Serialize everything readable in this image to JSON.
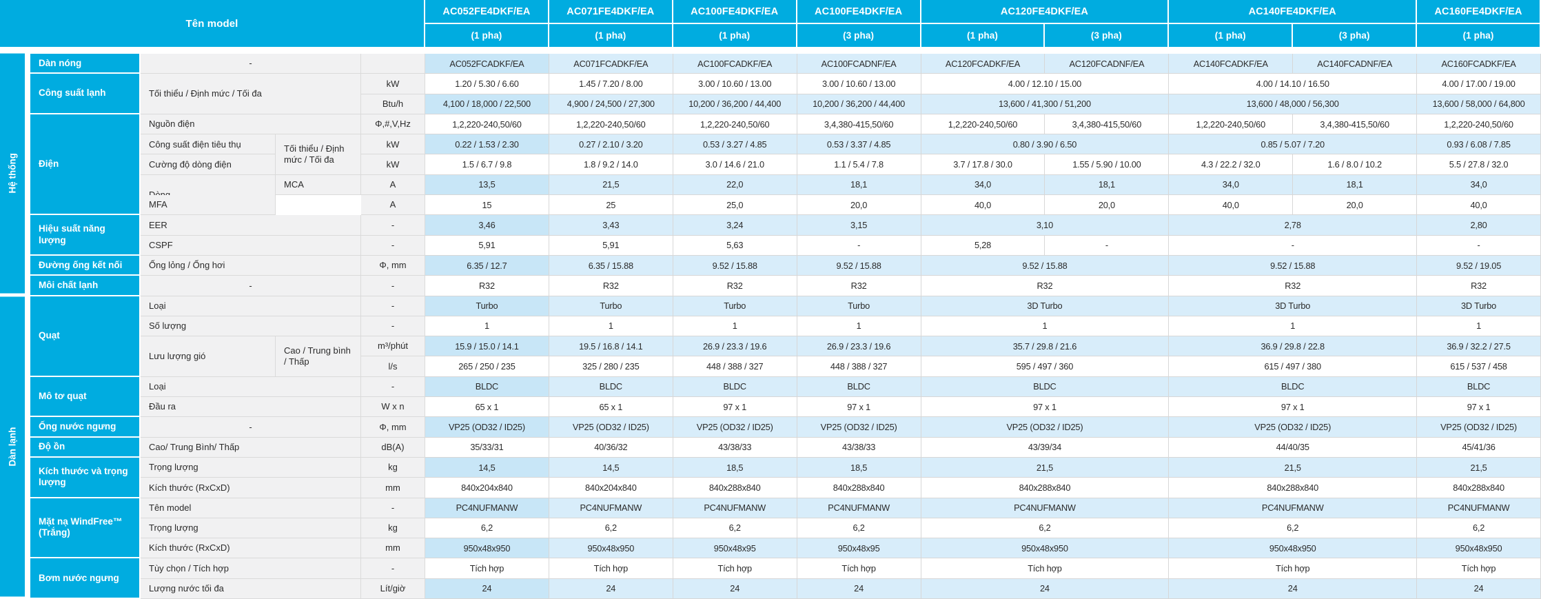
{
  "colors": {
    "accent": "#00ACE0",
    "row_shaded": "#D8EDFA",
    "row_shaded_first_col": "#C8E6F7",
    "label_gray": "#F1F1F2"
  },
  "header": {
    "ten_model_label": "Tên model",
    "models": [
      {
        "name": "AC052FE4DKF/EA",
        "phases": [
          "(1 pha)"
        ]
      },
      {
        "name": "AC071FE4DKF/EA",
        "phases": [
          "(1 pha)"
        ]
      },
      {
        "name": "AC100FE4DKF/EA",
        "phases": [
          "(1 pha)"
        ]
      },
      {
        "name": "AC100FE4DKF/EA",
        "phases": [
          "(3 pha)"
        ]
      },
      {
        "name": "AC120FE4DKF/EA",
        "phases": [
          "(1 pha)",
          "(3 pha)"
        ]
      },
      {
        "name": "AC140FE4DKF/EA",
        "phases": [
          "(1 pha)",
          "(3 pha)"
        ]
      },
      {
        "name": "AC160FE4DKF/EA",
        "phases": [
          "(1 pha)"
        ]
      }
    ]
  },
  "sections": [
    {
      "label": "Hệ thống",
      "rows": 12
    },
    {
      "label": "Dàn lạnh",
      "rows": 15
    }
  ],
  "rows": [
    {
      "group": {
        "label": "Dàn nóng",
        "rowspan": 1
      },
      "subs": [
        {
          "label": "-",
          "colspan": 2,
          "align": "center"
        }
      ],
      "unit": "",
      "cells": [
        "AC052FCADKF/EA",
        "AC071FCADKF/EA",
        "AC100FCADKF/EA",
        "AC100FCADNF/EA",
        "AC120FCADKF/EA",
        "AC120FCADNF/EA",
        "AC140FCADKF/EA",
        "AC140FCADNF/EA",
        "AC160FCADKF/EA"
      ]
    },
    {
      "group": {
        "label": "Công suất lạnh",
        "rowspan": 2
      },
      "subs": [
        {
          "label": "Tối thiểu / Định mức / Tối đa",
          "colspan": 2,
          "rowspan": 2,
          "align": "left"
        }
      ],
      "unit": "kW",
      "cells": [
        "1.20 / 5.30 / 6.60",
        "1.45 / 7.20 / 8.00",
        "3.00 / 10.60 / 13.00",
        "3.00 / 10.60 / 13.00",
        {
          "v": "4.00 / 12.10 / 15.00",
          "s": 2
        },
        {
          "v": "4.00 / 14.10 / 16.50",
          "s": 2
        },
        "4.00 / 17.00 / 19.00"
      ]
    },
    {
      "subs": [],
      "unit": "Btu/h",
      "cells": [
        "4,100 / 18,000 / 22,500",
        "4,900 / 24,500 / 27,300",
        "10,200 / 36,200 / 44,400",
        "10,200 / 36,200 / 44,400",
        {
          "v": "13,600 / 41,300 / 51,200",
          "s": 2
        },
        {
          "v": "13,600 / 48,000 / 56,300",
          "s": 2
        },
        "13,600 / 58,000 / 64,800"
      ]
    },
    {
      "group": {
        "label": "Điện",
        "rowspan": 5
      },
      "subs": [
        {
          "label": "Nguồn điện",
          "colspan": 2,
          "align": "left"
        }
      ],
      "unit": "Φ,#,V,Hz",
      "cells": [
        "1,2,220-240,50/60",
        "1,2,220-240,50/60",
        "1,2,220-240,50/60",
        "3,4,380-415,50/60",
        "1,2,220-240,50/60",
        "3,4,380-415,50/60",
        "1,2,220-240,50/60",
        "3,4,380-415,50/60",
        "1,2,220-240,50/60"
      ]
    },
    {
      "subs": [
        {
          "label": "Công suất điện tiêu thụ",
          "colspan": 1,
          "align": "left"
        },
        {
          "label": "Tối thiểu / Định mức / Tối đa",
          "colspan": 1,
          "rowspan": 2,
          "align": "left"
        }
      ],
      "unit": "kW",
      "cells": [
        "0.22 / 1.53 / 2.30",
        "0.27 / 2.10 / 3.20",
        "0.53 / 3.27 / 4.85",
        "0.53 / 3.37 / 4.85",
        {
          "v": "0.80 / 3.90 / 6.50",
          "s": 2
        },
        {
          "v": "0.85 / 5.07 / 7.20",
          "s": 2
        },
        "0.93 / 6.08 / 7.85"
      ]
    },
    {
      "subs": [
        {
          "label": "Cường độ dòng điện",
          "colspan": 1,
          "align": "left"
        }
      ],
      "unit": "kW",
      "cells": [
        "1.5 / 6.7 / 9.8",
        "1.8 / 9.2 / 14.0",
        "3.0 / 14.6 / 21.0",
        "1.1 / 5.4 / 7.8",
        "3.7 / 17.8 / 30.0",
        "1.55 / 5.90 / 10.00",
        "4.3 / 22.2 / 32.0",
        "1.6 / 8.0 / 10.2",
        "5.5 / 27.8 / 32.0"
      ]
    },
    {
      "subs": [
        {
          "label": "Dòng",
          "colspan": 1,
          "rowspan": 2,
          "align": "left"
        },
        {
          "label": "MCA",
          "colspan": 1,
          "align": "left"
        }
      ],
      "unit": "A",
      "cells": [
        "13,5",
        "21,5",
        "22,0",
        "18,1",
        "34,0",
        "18,1",
        "34,0",
        "18,1",
        "34,0"
      ]
    },
    {
      "subs": [
        {
          "label": "MFA",
          "colspan": 1,
          "align": "left"
        }
      ],
      "unit": "A",
      "cells": [
        "15",
        "25",
        "25,0",
        "20,0",
        "40,0",
        "20,0",
        "40,0",
        "20,0",
        "40,0"
      ]
    },
    {
      "group": {
        "label": "Hiệu suất năng lượng",
        "rowspan": 2
      },
      "subs": [
        {
          "label": "EER",
          "colspan": 2,
          "align": "left"
        }
      ],
      "unit": "-",
      "cells": [
        "3,46",
        "3,43",
        "3,24",
        "3,15",
        {
          "v": "3,10",
          "s": 2
        },
        {
          "v": "2,78",
          "s": 2
        },
        "2,80"
      ]
    },
    {
      "subs": [
        {
          "label": "CSPF",
          "colspan": 2,
          "align": "left"
        }
      ],
      "unit": "-",
      "cells": [
        "5,91",
        "5,91",
        "5,63",
        "-",
        "5,28",
        "-",
        {
          "v": "-",
          "s": 2
        },
        "-"
      ]
    },
    {
      "group": {
        "label": "Đường ống kết nối",
        "rowspan": 1
      },
      "subs": [
        {
          "label": "Ống lỏng / Ống hơi",
          "colspan": 2,
          "align": "left"
        }
      ],
      "unit": "Φ, mm",
      "cells": [
        "6.35 / 12.7",
        "6.35 / 15.88",
        "9.52 / 15.88",
        "9.52 / 15.88",
        {
          "v": "9.52 / 15.88",
          "s": 2
        },
        {
          "v": "9.52 / 15.88",
          "s": 2
        },
        "9.52 / 19.05"
      ]
    },
    {
      "group": {
        "label": "Môi chất lạnh",
        "rowspan": 1
      },
      "subs": [
        {
          "label": "-",
          "colspan": 2,
          "align": "center"
        }
      ],
      "unit": "-",
      "cells": [
        "R32",
        "R32",
        "R32",
        "R32",
        {
          "v": "R32",
          "s": 2
        },
        {
          "v": "R32",
          "s": 2
        },
        "R32"
      ]
    },
    {
      "group": {
        "label": "Quạt",
        "rowspan": 4
      },
      "subs": [
        {
          "label": "Loại",
          "colspan": 2,
          "align": "left"
        }
      ],
      "unit": "-",
      "cells": [
        "Turbo",
        "Turbo",
        "Turbo",
        "Turbo",
        {
          "v": "3D Turbo",
          "s": 2
        },
        {
          "v": "3D Turbo",
          "s": 2
        },
        "3D Turbo"
      ]
    },
    {
      "subs": [
        {
          "label": "Số lượng",
          "colspan": 2,
          "align": "left"
        }
      ],
      "unit": "-",
      "cells": [
        "1",
        "1",
        "1",
        "1",
        {
          "v": "1",
          "s": 2
        },
        {
          "v": "1",
          "s": 2
        },
        "1"
      ]
    },
    {
      "subs": [
        {
          "label": "Lưu lượng gió",
          "colspan": 1,
          "rowspan": 2,
          "align": "left"
        },
        {
          "label": "Cao / Trung bình / Thấp",
          "colspan": 1,
          "rowspan": 2,
          "align": "left"
        }
      ],
      "unit": "m³/phút",
      "cells": [
        "15.9 / 15.0 / 14.1",
        "19.5 / 16.8 / 14.1",
        "26.9 / 23.3 / 19.6",
        "26.9 / 23.3 / 19.6",
        {
          "v": "35.7 / 29.8 / 21.6",
          "s": 2
        },
        {
          "v": "36.9 / 29.8 / 22.8",
          "s": 2
        },
        "36.9 / 32.2 / 27.5"
      ]
    },
    {
      "subs": [],
      "unit": "l/s",
      "cells": [
        "265 / 250 / 235",
        "325 / 280 / 235",
        "448 / 388 / 327",
        "448 / 388 / 327",
        {
          "v": "595 / 497 / 360",
          "s": 2
        },
        {
          "v": "615 / 497 / 380",
          "s": 2
        },
        "615 / 537 / 458"
      ]
    },
    {
      "group": {
        "label": "Mô tơ quạt",
        "rowspan": 2
      },
      "subs": [
        {
          "label": "Loại",
          "colspan": 2,
          "align": "left"
        }
      ],
      "unit": "-",
      "cells": [
        "BLDC",
        "BLDC",
        "BLDC",
        "BLDC",
        {
          "v": "BLDC",
          "s": 2
        },
        {
          "v": "BLDC",
          "s": 2
        },
        "BLDC"
      ]
    },
    {
      "subs": [
        {
          "label": "Đầu ra",
          "colspan": 2,
          "align": "left"
        }
      ],
      "unit": "W x n",
      "cells": [
        "65 x 1",
        "65 x 1",
        "97 x 1",
        "97 x 1",
        {
          "v": "97 x 1",
          "s": 2
        },
        {
          "v": "97 x 1",
          "s": 2
        },
        "97 x 1"
      ]
    },
    {
      "group": {
        "label": "Ống nước ngưng",
        "rowspan": 1
      },
      "subs": [
        {
          "label": "-",
          "colspan": 2,
          "align": "center"
        }
      ],
      "unit": "Φ, mm",
      "cells": [
        "VP25 (OD32 / ID25)",
        "VP25 (OD32 / ID25)",
        "VP25 (OD32 / ID25)",
        "VP25 (OD32 / ID25)",
        {
          "v": "VP25 (OD32 / ID25)",
          "s": 2
        },
        {
          "v": "VP25 (OD32 / ID25)",
          "s": 2
        },
        "VP25 (OD32 / ID25)"
      ]
    },
    {
      "group": {
        "label": "Độ ồn",
        "rowspan": 1
      },
      "subs": [
        {
          "label": "Cao/ Trung Bình/ Thấp",
          "colspan": 2,
          "align": "left"
        }
      ],
      "unit": "dB(A)",
      "cells": [
        "35/33/31",
        "40/36/32",
        "43/38/33",
        "43/38/33",
        {
          "v": "43/39/34",
          "s": 2
        },
        {
          "v": "44/40/35",
          "s": 2
        },
        "45/41/36"
      ]
    },
    {
      "group": {
        "label": "Kích thước và trọng lượng",
        "rowspan": 2
      },
      "subs": [
        {
          "label": "Trọng lượng",
          "colspan": 2,
          "align": "left"
        }
      ],
      "unit": "kg",
      "cells": [
        "14,5",
        "14,5",
        "18,5",
        "18,5",
        {
          "v": "21,5",
          "s": 2
        },
        {
          "v": "21,5",
          "s": 2
        },
        "21,5"
      ]
    },
    {
      "subs": [
        {
          "label": "Kích thước (RxCxD)",
          "colspan": 2,
          "align": "left"
        }
      ],
      "unit": "mm",
      "cells": [
        "840x204x840",
        "840x204x840",
        "840x288x840",
        "840x288x840",
        {
          "v": "840x288x840",
          "s": 2
        },
        {
          "v": "840x288x840",
          "s": 2
        },
        "840x288x840"
      ]
    },
    {
      "group": {
        "label": "Mặt nạ WindFree™ (Trắng)",
        "rowspan": 3
      },
      "subs": [
        {
          "label": "Tên model",
          "colspan": 2,
          "align": "left"
        }
      ],
      "unit": "-",
      "cells": [
        "PC4NUFMANW",
        "PC4NUFMANW",
        "PC4NUFMANW",
        "PC4NUFMANW",
        {
          "v": "PC4NUFMANW",
          "s": 2
        },
        {
          "v": "PC4NUFMANW",
          "s": 2
        },
        "PC4NUFMANW"
      ]
    },
    {
      "subs": [
        {
          "label": "Trọng lượng",
          "colspan": 2,
          "align": "left"
        }
      ],
      "unit": "kg",
      "cells": [
        "6,2",
        "6,2",
        "6,2",
        "6,2",
        {
          "v": "6,2",
          "s": 2
        },
        {
          "v": "6,2",
          "s": 2
        },
        "6,2"
      ]
    },
    {
      "subs": [
        {
          "label": "Kích thước (RxCxD)",
          "colspan": 2,
          "align": "left"
        }
      ],
      "unit": "mm",
      "cells": [
        "950x48x950",
        "950x48x950",
        "950x48x95",
        "950x48x95",
        {
          "v": "950x48x950",
          "s": 2
        },
        {
          "v": "950x48x950",
          "s": 2
        },
        "950x48x950"
      ]
    },
    {
      "group": {
        "label": "Bơm nước ngưng",
        "rowspan": 2
      },
      "subs": [
        {
          "label": "Tùy chọn / Tích hợp",
          "colspan": 2,
          "align": "left"
        }
      ],
      "unit": "-",
      "cells": [
        "Tích hợp",
        "Tích hợp",
        "Tích hợp",
        "Tích hợp",
        {
          "v": "Tích hợp",
          "s": 2
        },
        {
          "v": "Tích hợp",
          "s": 2
        },
        "Tích hợp"
      ]
    },
    {
      "subs": [
        {
          "label": "Lượng nước tối đa",
          "colspan": 2,
          "align": "left"
        }
      ],
      "unit": "Lít/giờ",
      "cells": [
        "24",
        "24",
        "24",
        "24",
        {
          "v": "24",
          "s": 2
        },
        {
          "v": "24",
          "s": 2
        },
        "24"
      ]
    }
  ]
}
